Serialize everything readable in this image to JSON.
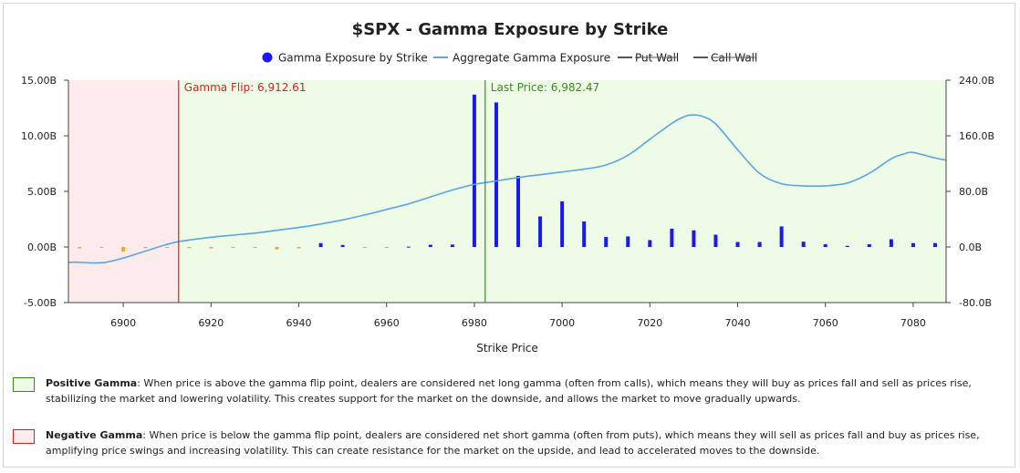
{
  "chart_data": {
    "type": "bar+line",
    "title": "$SPX - Gamma Exposure by Strike",
    "xlabel": "Strike Price",
    "ylabel_left": "",
    "ylabel_right": "",
    "xlim": [
      6887.5,
      7087.5
    ],
    "x_ticks": [
      6900,
      6920,
      6940,
      6960,
      6980,
      7000,
      7020,
      7040,
      7060,
      7080
    ],
    "y_left": {
      "min": -5,
      "max": 15,
      "ticks": [
        "-5.00B",
        "0.00B",
        "5.00B",
        "10.00B",
        "15.00B"
      ]
    },
    "y_right": {
      "min": -80,
      "max": 240,
      "ticks": [
        "-80.0B",
        "0.0B",
        "80.0B",
        "160.0B",
        "240.0B"
      ]
    },
    "legend": [
      {
        "label": "Gamma Exposure by Strike",
        "style": "dot",
        "color": "#1a1aee"
      },
      {
        "label": "Aggregate Gamma Exposure",
        "style": "line",
        "color": "#5aa5e8"
      },
      {
        "label": "Put Wall",
        "style": "line-struck",
        "color": "#555555"
      },
      {
        "label": "Call Wall",
        "style": "line-struck",
        "color": "#555555"
      }
    ],
    "series": [
      {
        "name": "Gamma Exposure by Strike",
        "axis": "left",
        "positive_color": "#1a1aee",
        "negative_color": "#f5a623",
        "x": [
          6890,
          6895,
          6900,
          6905,
          6910,
          6915,
          6920,
          6925,
          6930,
          6935,
          6940,
          6945,
          6950,
          6955,
          6960,
          6965,
          6970,
          6975,
          6980,
          6985,
          6990,
          6995,
          7000,
          7005,
          7010,
          7015,
          7020,
          7025,
          7030,
          7035,
          7040,
          7045,
          7050,
          7055,
          7060,
          7065,
          7070,
          7075,
          7080,
          7085
        ],
        "values": [
          -0.12,
          -0.08,
          -0.42,
          -0.1,
          -0.08,
          -0.1,
          -0.12,
          -0.05,
          -0.06,
          -0.22,
          -0.12,
          0.35,
          0.18,
          -0.06,
          -0.05,
          0.03,
          0.2,
          0.22,
          13.7,
          13.0,
          6.4,
          2.75,
          4.1,
          2.3,
          0.9,
          0.95,
          0.62,
          1.65,
          1.5,
          1.1,
          0.45,
          0.45,
          1.85,
          0.48,
          0.25,
          0.1,
          0.25,
          0.7,
          0.35,
          0.35
        ]
      },
      {
        "name": "Aggregate Gamma Exposure",
        "axis": "right",
        "color": "#5aa5e8",
        "x": [
          6887.5,
          6890,
          6893,
          6896,
          6900,
          6903,
          6906,
          6909,
          6912,
          6915,
          6920,
          6925,
          6930,
          6935,
          6940,
          6945,
          6950,
          6955,
          6960,
          6965,
          6970,
          6975,
          6980,
          6985,
          6990,
          6995,
          7000,
          7005,
          7010,
          7015,
          7020,
          7025,
          7028,
          7030,
          7032,
          7035,
          7040,
          7045,
          7050,
          7055,
          7060,
          7065,
          7070,
          7075,
          7078,
          7080,
          7085,
          7087.5
        ],
        "values": [
          -22,
          -22,
          -23,
          -22,
          -16,
          -10,
          -4,
          2,
          7,
          10,
          14,
          17,
          20,
          24,
          28,
          33,
          39,
          46,
          54,
          62,
          72,
          82,
          90,
          95,
          100,
          104,
          108,
          112,
          118,
          132,
          155,
          178,
          188,
          190,
          188,
          177,
          140,
          106,
          91,
          88,
          88,
          92,
          106,
          127,
          134,
          136,
          128,
          125
        ]
      }
    ],
    "annotations": [
      {
        "label": "Gamma Flip: 6,912.61",
        "x": 6912.61,
        "color": "#d42020"
      },
      {
        "label": "Last Price: 6,982.47",
        "x": 6982.47,
        "color": "#3a8a20"
      }
    ],
    "regions": [
      {
        "name": "negative-gamma-region",
        "from": 6887.5,
        "to": 6912.61,
        "color": "#fdeaea"
      },
      {
        "name": "positive-gamma-region",
        "from": 6912.61,
        "to": 7087.5,
        "color": "#eefbe6"
      }
    ]
  },
  "notes": {
    "positive": {
      "title": "Positive Gamma",
      "text": ": When price is above the gamma flip point, dealers are considered net long gamma (often from calls), which means they will buy as prices fall and sell as prices rise, stabilizing the market and lowering volatility. This creates support for the market on the downside, and allows the market to move gradually upwards.",
      "swatch_fill": "#eefbe6",
      "swatch_border": "#3a8a20"
    },
    "negative": {
      "title": "Negative Gamma",
      "text": ": When price is below the gamma flip point, dealers are considered net short gamma (often from puts), which means they will sell as prices fall and buy as prices rise, amplifying price swings and increasing volatility. This can create resistance for the market on the upside, and lead to accelerated moves to the downside.",
      "swatch_fill": "#fdeaea",
      "swatch_border": "#d42020"
    }
  }
}
